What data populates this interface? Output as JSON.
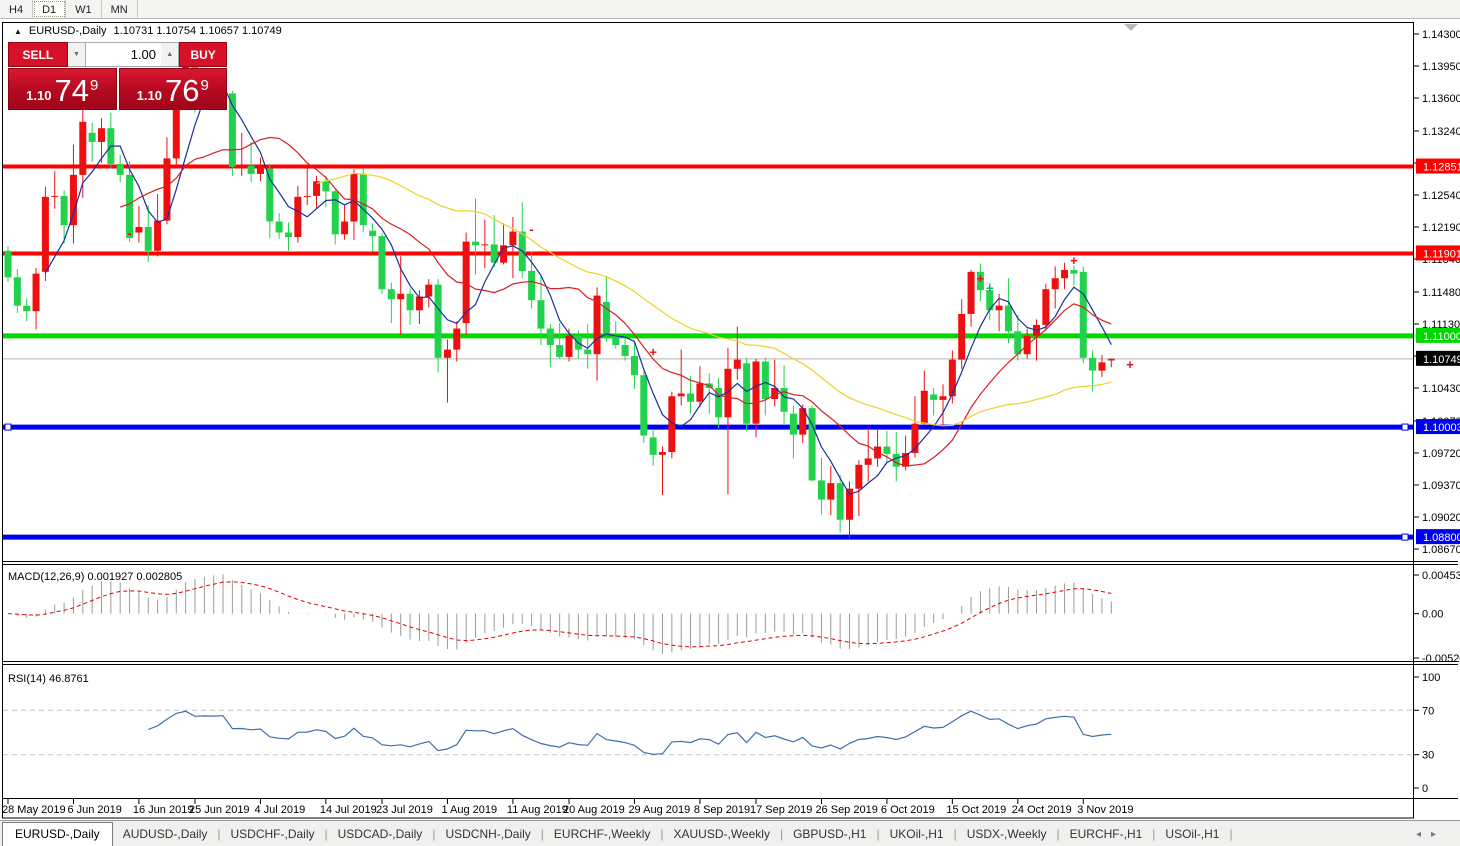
{
  "toolbar": {
    "timeframes": [
      {
        "label": "H4",
        "active": false
      },
      {
        "label": "D1",
        "active": true
      },
      {
        "label": "W1",
        "active": false
      },
      {
        "label": "MN",
        "active": false
      }
    ]
  },
  "symbol_info": {
    "collapse_icon": "▲",
    "symbol": "EURUSD-,Daily",
    "ohlc": "1.10731 1.10754 1.10657 1.10749"
  },
  "trade_panel": {
    "sell_label": "SELL",
    "buy_label": "BUY",
    "volume": "1.00",
    "spinner_down_icon": "▼",
    "spinner_up_icon": "▲",
    "sell_price_small": "1.10",
    "sell_price_big": "74",
    "sell_price_sup": "9",
    "buy_price_small": "1.10",
    "buy_price_big": "76",
    "buy_price_sup": "9"
  },
  "price_axis": {
    "ticks": [
      "1.14300",
      "1.13950",
      "1.13600",
      "1.13240",
      "1.12890",
      "1.12540",
      "1.12190",
      "1.11840",
      "1.11480",
      "1.11130",
      "1.10780",
      "1.10430",
      "1.10070",
      "1.09720",
      "1.09370",
      "1.09020",
      "1.08670"
    ]
  },
  "levels": [
    {
      "price": 1.12851,
      "label": "1.12851",
      "color": "#fe0000",
      "width": 4,
      "handles": []
    },
    {
      "price": 1.11901,
      "label": "1.11901",
      "color": "#fe0000",
      "width": 4,
      "handles": []
    },
    {
      "price": 1.11,
      "label": "1.11000",
      "color": "#00d900",
      "width": 5,
      "handles": []
    },
    {
      "price": 1.10003,
      "label": "1.10003",
      "color": "#0000f0",
      "width": 5,
      "handles": [
        "left",
        "right"
      ]
    },
    {
      "price": 1.088,
      "label": "1.08800",
      "color": "#0000f0",
      "width": 5,
      "handles": [
        "right"
      ]
    }
  ],
  "current_price": {
    "value": 1.10749,
    "label": "1.10749"
  },
  "chart_data": {
    "type": "candlestick",
    "title": "EURUSD-,Daily",
    "convention": "red=bullish, green=bearish",
    "x_labels": [
      {
        "bar": 0,
        "label": "28 May 2019"
      },
      {
        "bar": 7,
        "label": "6 Jun 2019"
      },
      {
        "bar": 14,
        "label": "16 Jun 2019"
      },
      {
        "bar": 20,
        "label": "25 Jun 2019"
      },
      {
        "bar": 27,
        "label": "4 Jul 2019"
      },
      {
        "bar": 34,
        "label": "14 Jul 2019"
      },
      {
        "bar": 40,
        "label": "23 Jul 2019"
      },
      {
        "bar": 47,
        "label": "1 Aug 2019"
      },
      {
        "bar": 54,
        "label": "11 Aug 2019"
      },
      {
        "bar": 60,
        "label": "20 Aug 2019"
      },
      {
        "bar": 67,
        "label": "29 Aug 2019"
      },
      {
        "bar": 74,
        "label": "8 Sep 2019"
      },
      {
        "bar": 80,
        "label": "17 Sep 2019"
      },
      {
        "bar": 87,
        "label": "26 Sep 2019"
      },
      {
        "bar": 94,
        "label": "6 Oct 2019"
      },
      {
        "bar": 101,
        "label": "15 Oct 2019"
      },
      {
        "bar": 108,
        "label": "24 Oct 2019"
      },
      {
        "bar": 115,
        "label": "3 Nov 2019"
      }
    ],
    "candles": [
      [
        1.1193,
        1.1198,
        1.1159,
        1.1164
      ],
      [
        1.1164,
        1.1173,
        1.1125,
        1.1133
      ],
      [
        1.1133,
        1.1141,
        1.1116,
        1.1127
      ],
      [
        1.1127,
        1.1174,
        1.1107,
        1.1168
      ],
      [
        1.117,
        1.1263,
        1.116,
        1.1252
      ],
      [
        1.1252,
        1.128,
        1.1239,
        1.1253
      ],
      [
        1.1253,
        1.1259,
        1.1201,
        1.1221
      ],
      [
        1.1221,
        1.1309,
        1.1201,
        1.1276
      ],
      [
        1.1276,
        1.1348,
        1.1251,
        1.1334
      ],
      [
        1.1322,
        1.1333,
        1.129,
        1.1312
      ],
      [
        1.1312,
        1.1338,
        1.1289,
        1.1327
      ],
      [
        1.1327,
        1.1344,
        1.1283,
        1.1288
      ],
      [
        1.1288,
        1.1298,
        1.1268,
        1.1276
      ],
      [
        1.1276,
        1.1291,
        1.1203,
        1.1207
      ],
      [
        1.1213,
        1.1242,
        1.1202,
        1.1219
      ],
      [
        1.1219,
        1.1243,
        1.1181,
        1.1193
      ],
      [
        1.1193,
        1.1255,
        1.1187,
        1.1226
      ],
      [
        1.1226,
        1.1317,
        1.1222,
        1.1294
      ],
      [
        1.1294,
        1.1378,
        1.1285,
        1.1369
      ],
      [
        1.1373,
        1.1406,
        1.1363,
        1.1399
      ],
      [
        1.1399,
        1.1412,
        1.1344,
        1.1365
      ],
      [
        1.1365,
        1.1391,
        1.1347,
        1.1369
      ],
      [
        1.1369,
        1.1388,
        1.1355,
        1.1368
      ],
      [
        1.1368,
        1.1392,
        1.1351,
        1.1373
      ],
      [
        1.1365,
        1.1368,
        1.1275,
        1.1285
      ],
      [
        1.1285,
        1.1322,
        1.1275,
        1.1286
      ],
      [
        1.1286,
        1.1312,
        1.1268,
        1.1277
      ],
      [
        1.1277,
        1.1295,
        1.1269,
        1.1283
      ],
      [
        1.1283,
        1.1288,
        1.1207,
        1.1225
      ],
      [
        1.1225,
        1.1234,
        1.1206,
        1.1213
      ],
      [
        1.1213,
        1.1224,
        1.1193,
        1.1208
      ],
      [
        1.1208,
        1.1264,
        1.1202,
        1.1252
      ],
      [
        1.1252,
        1.1285,
        1.1243,
        1.1253
      ],
      [
        1.1253,
        1.1275,
        1.1239,
        1.1269
      ],
      [
        1.1269,
        1.1275,
        1.1241,
        1.1258
      ],
      [
        1.1258,
        1.1261,
        1.12,
        1.1211
      ],
      [
        1.1211,
        1.1243,
        1.1205,
        1.1225
      ],
      [
        1.1225,
        1.1282,
        1.1205,
        1.1277
      ],
      [
        1.1277,
        1.1283,
        1.1213,
        1.1221
      ],
      [
        1.1215,
        1.1223,
        1.1192,
        1.1209
      ],
      [
        1.1209,
        1.1212,
        1.1146,
        1.1151
      ],
      [
        1.1151,
        1.1158,
        1.1114,
        1.114
      ],
      [
        1.114,
        1.1187,
        1.1101,
        1.1146
      ],
      [
        1.1146,
        1.1152,
        1.1112,
        1.1128
      ],
      [
        1.1128,
        1.115,
        1.1113,
        1.1143
      ],
      [
        1.1143,
        1.1162,
        1.1131,
        1.1156
      ],
      [
        1.1156,
        1.1162,
        1.106,
        1.1076
      ],
      [
        1.1076,
        1.1096,
        1.1027,
        1.1085
      ],
      [
        1.1085,
        1.1116,
        1.1072,
        1.1108
      ],
      [
        1.1114,
        1.1213,
        1.1101,
        1.1203
      ],
      [
        1.1203,
        1.125,
        1.1167,
        1.1199
      ],
      [
        1.1199,
        1.1227,
        1.1174,
        1.12
      ],
      [
        1.12,
        1.1232,
        1.1175,
        1.118
      ],
      [
        1.118,
        1.1223,
        1.1178,
        1.1199
      ],
      [
        1.1199,
        1.123,
        1.1163,
        1.1214
      ],
      [
        1.1214,
        1.1246,
        1.1163,
        1.1171
      ],
      [
        1.1171,
        1.1192,
        1.113,
        1.1139
      ],
      [
        1.1139,
        1.1165,
        1.109,
        1.1108
      ],
      [
        1.1108,
        1.1113,
        1.1066,
        1.109
      ],
      [
        1.109,
        1.1114,
        1.1075,
        1.1077
      ],
      [
        1.1077,
        1.1108,
        1.1072,
        1.11
      ],
      [
        1.11,
        1.1106,
        1.1075,
        1.1085
      ],
      [
        1.1085,
        1.1113,
        1.1064,
        1.108
      ],
      [
        1.108,
        1.1153,
        1.1051,
        1.1144
      ],
      [
        1.1137,
        1.1164,
        1.1094,
        1.1101
      ],
      [
        1.1101,
        1.1116,
        1.1086,
        1.109
      ],
      [
        1.109,
        1.1098,
        1.1073,
        1.1078
      ],
      [
        1.1078,
        1.1094,
        1.1042,
        1.1057
      ],
      [
        1.1057,
        1.1061,
        1.0983,
        1.0991
      ],
      [
        1.0989,
        1.0997,
        1.0958,
        1.097
      ],
      [
        1.097,
        1.0979,
        1.0926,
        1.0973
      ],
      [
        1.0973,
        1.1039,
        1.0966,
        1.1034
      ],
      [
        1.1034,
        1.1085,
        1.1024,
        1.1037
      ],
      [
        1.1037,
        1.1056,
        1.1015,
        1.1028
      ],
      [
        1.1028,
        1.1067,
        1.1022,
        1.1048
      ],
      [
        1.1048,
        1.1059,
        1.1015,
        1.1043
      ],
      [
        1.1043,
        1.1054,
        1.0999,
        1.1011
      ],
      [
        1.1011,
        1.1087,
        1.0927,
        1.1064
      ],
      [
        1.1064,
        1.111,
        1.1052,
        1.1074
      ],
      [
        1.107,
        1.1076,
        1.0996,
        1.1004
      ],
      [
        1.1004,
        1.1075,
        1.0989,
        1.1072
      ],
      [
        1.1072,
        1.1076,
        1.1013,
        1.1031
      ],
      [
        1.1031,
        1.1074,
        1.1023,
        1.1043
      ],
      [
        1.1043,
        1.1068,
        1.1004,
        1.1017
      ],
      [
        1.1015,
        1.1024,
        1.0966,
        1.0992
      ],
      [
        1.0992,
        1.1025,
        1.0983,
        1.1021
      ],
      [
        1.1021,
        1.1024,
        1.0941,
        1.0942
      ],
      [
        1.0942,
        1.0967,
        1.0905,
        1.0921
      ],
      [
        1.0921,
        1.0958,
        1.0904,
        1.0939
      ],
      [
        1.0939,
        1.0948,
        1.0885,
        1.0899
      ],
      [
        1.0899,
        1.0941,
        1.0879,
        1.0933
      ],
      [
        1.0933,
        1.0964,
        1.0903,
        1.0959
      ],
      [
        1.0959,
        1.0999,
        1.0941,
        1.0966
      ],
      [
        1.0966,
        1.0999,
        1.0957,
        1.0979
      ],
      [
        1.0979,
        1.0996,
        1.0962,
        1.0971
      ],
      [
        1.0971,
        1.0995,
        1.0941,
        1.0957
      ],
      [
        1.0957,
        1.0991,
        1.0953,
        1.0972
      ],
      [
        1.0972,
        1.1034,
        1.0967,
        1.1004
      ],
      [
        1.1004,
        1.1062,
        1.1002,
        1.104
      ],
      [
        1.1036,
        1.1043,
        1.1013,
        1.103
      ],
      [
        1.103,
        1.1047,
        1.1001,
        1.1034
      ],
      [
        1.1034,
        1.1084,
        1.1026,
        1.1074
      ],
      [
        1.1074,
        1.114,
        1.1064,
        1.1124
      ],
      [
        1.1124,
        1.1172,
        1.111,
        1.117
      ],
      [
        1.117,
        1.1179,
        1.1138,
        1.115
      ],
      [
        1.115,
        1.1158,
        1.1117,
        1.1128
      ],
      [
        1.1128,
        1.1146,
        1.1105,
        1.1133
      ],
      [
        1.1133,
        1.1163,
        1.1092,
        1.1105
      ],
      [
        1.1105,
        1.1123,
        1.1073,
        1.108
      ],
      [
        1.108,
        1.1108,
        1.1075,
        1.11
      ],
      [
        1.11,
        1.1118,
        1.1073,
        1.1112
      ],
      [
        1.1112,
        1.1157,
        1.1106,
        1.1151
      ],
      [
        1.1151,
        1.1176,
        1.113,
        1.1163
      ],
      [
        1.1163,
        1.118,
        1.1151,
        1.1172
      ],
      [
        1.1172,
        1.1177,
        1.1155,
        1.1168
      ],
      [
        1.117,
        1.1176,
        1.107,
        1.1076
      ],
      [
        1.1076,
        1.1084,
        1.1039,
        1.1062
      ],
      [
        1.1062,
        1.1079,
        1.1055,
        1.1071
      ],
      [
        1.10731,
        1.10754,
        1.10657,
        1.10749
      ]
    ],
    "colors": {
      "bull": "#ee1010",
      "bear": "#22d24c",
      "histogram": "#9a9a9a",
      "signal": "#e00000",
      "rsi": "#3f6fae"
    },
    "moving_averages": [
      {
        "period": 5,
        "color": "#16309f"
      },
      {
        "period": 13,
        "color": "#d42020"
      },
      {
        "period": 34,
        "color": "#efd028"
      }
    ],
    "markers": [
      {
        "bar": 8,
        "price": 1.132,
        "glyph": "+",
        "color": "red"
      },
      {
        "bar": 13,
        "price": 1.1212,
        "glyph": "-",
        "color": "red"
      },
      {
        "bar": 31,
        "price": 1.1228,
        "glyph": "-",
        "color": "red"
      },
      {
        "bar": 56,
        "price": 1.1216,
        "glyph": "-",
        "color": "red"
      },
      {
        "bar": 69,
        "price": 1.1082,
        "glyph": "+",
        "color": "red"
      },
      {
        "bar": 104,
        "price": 1.1162,
        "glyph": "+",
        "color": "red"
      },
      {
        "bar": 105,
        "price": 1.1152,
        "glyph": "+",
        "color": "green"
      },
      {
        "bar": 114,
        "price": 1.1182,
        "glyph": "+",
        "color": "red"
      },
      {
        "bar": 120,
        "price": 1.1068,
        "glyph": "+",
        "color": "red"
      }
    ],
    "macd": {
      "label": "MACD(12,26,9) 0.001927 0.002805",
      "params": [
        12,
        26,
        9
      ],
      "values": [
        0.001927,
        0.002805
      ],
      "axis": [
        {
          "v": 0.004536,
          "label": "0.004536"
        },
        {
          "v": 0,
          "label": "0.00"
        },
        {
          "v": -0.005205,
          "label": "-0.005205"
        }
      ]
    },
    "rsi": {
      "label": "RSI(14) 46.8761",
      "period": 14,
      "value": 46.8761,
      "axis": [
        {
          "v": 100,
          "label": "100"
        },
        {
          "v": 70,
          "label": "70"
        },
        {
          "v": 30,
          "label": "30"
        },
        {
          "v": 0,
          "label": "0"
        }
      ],
      "levels": [
        70,
        30
      ]
    }
  },
  "tabs": {
    "items": [
      "EURUSD-,Daily",
      "AUDUSD-,Daily",
      "USDCHF-,Daily",
      "USDCAD-,Daily",
      "USDCNH-,Daily",
      "EURCHF-,Weekly",
      "XAUUSD-,Weekly",
      "GBPUSD-,H1",
      "UKOil-,H1",
      "USDX-,Weekly",
      "EURCHF-,H1",
      "USOil-,H1"
    ],
    "active_index": 0,
    "scroll_left_icon": "◂",
    "scroll_right_icon": "▸"
  }
}
